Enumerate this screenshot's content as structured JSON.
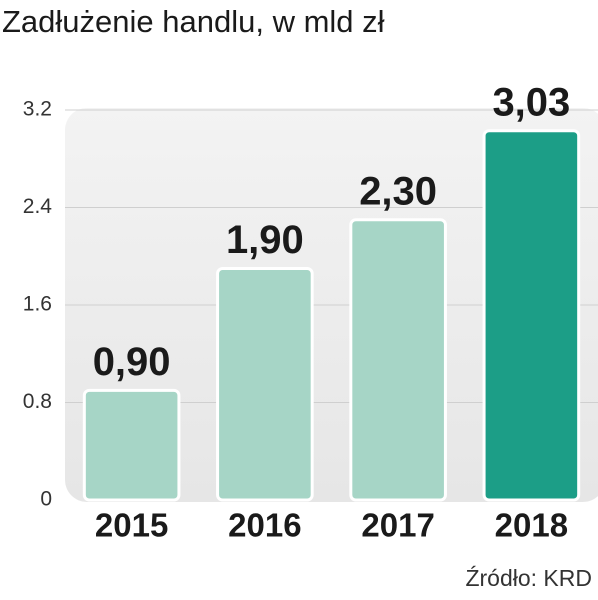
{
  "chart_data": {
    "type": "bar",
    "title": "Zadłużenie handlu, w mld zł",
    "categories": [
      "2015",
      "2016",
      "2017",
      "2018"
    ],
    "values": [
      0.9,
      1.9,
      2.3,
      3.03
    ],
    "value_labels": [
      "0,90",
      "1,90",
      "2,30",
      "3,03"
    ],
    "colors": [
      "#a6d5c6",
      "#a6d5c6",
      "#a6d5c6",
      "#1c9e87"
    ],
    "ylim": [
      0,
      3.2
    ],
    "yticks": [
      0,
      0.8,
      1.6,
      2.4,
      3.2
    ],
    "grid": true,
    "source": "Źródło: KRD"
  }
}
